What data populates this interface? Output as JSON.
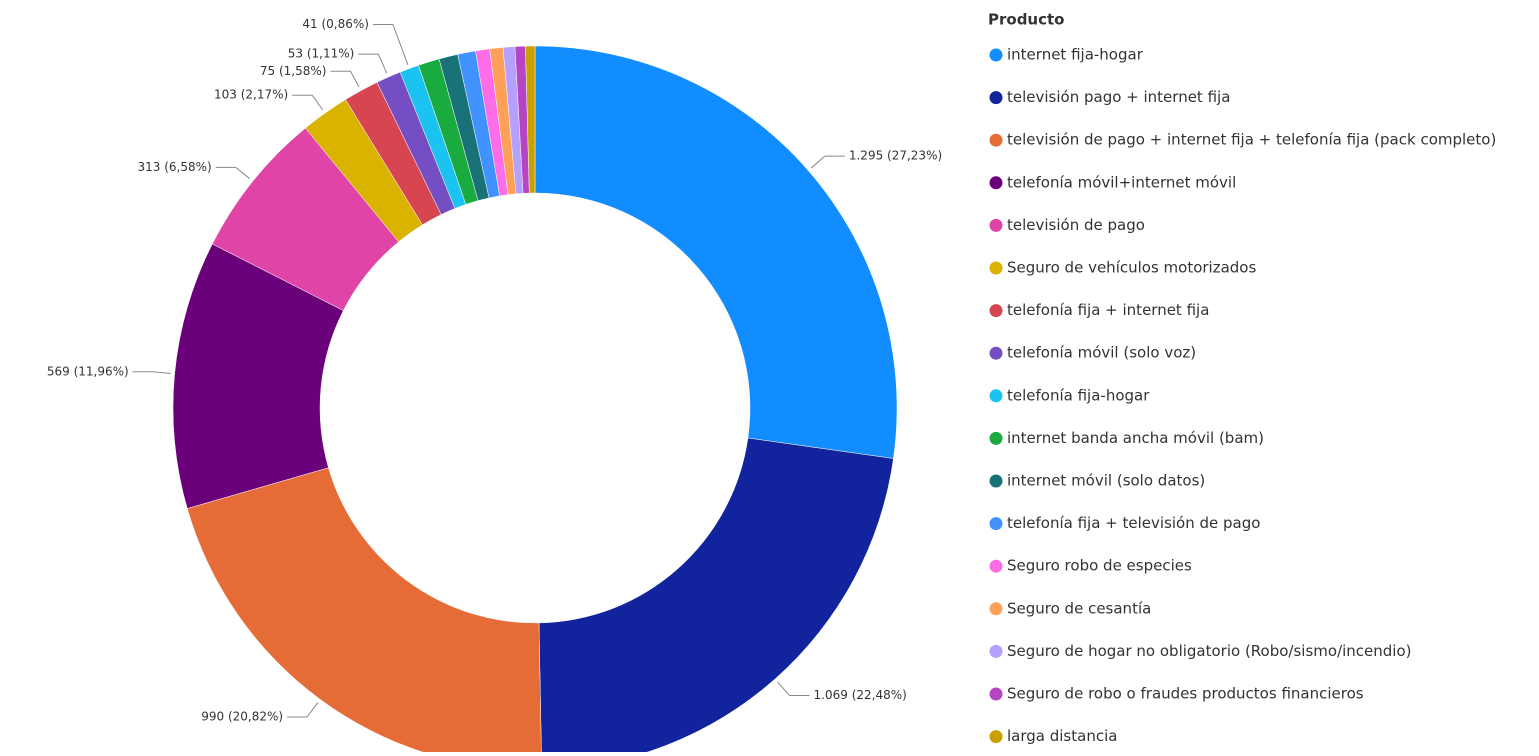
{
  "chart_data": {
    "type": "donut",
    "legend_title": "Producto",
    "legend": "right",
    "categories": [
      "internet fija-hogar",
      "televisión pago + internet fija",
      "televisión de pago + internet fija + telefonía fija (pack completo)",
      "telefonía móvil+internet móvil",
      "televisión de pago",
      "Seguro de vehículos motorizados",
      "telefonía fija + internet fija",
      "telefonía móvil (solo voz)",
      "telefonía fija-hogar",
      "internet banda ancha móvil (bam)",
      "internet móvil (solo datos)",
      "telefonía fija + televisión de pago",
      "Seguro robo de especies",
      "Seguro de cesantía",
      "Seguro de hogar no obligatorio (Robo/sismo/incendio)",
      "Seguro de robo o fraudes productos financieros",
      "larga distancia"
    ],
    "values": [
      1295,
      1069,
      990,
      569,
      313,
      103,
      75,
      53,
      41,
      45,
      40,
      38,
      30,
      28,
      25,
      22,
      20
    ],
    "value_labels": [
      "1.295 (27,23%)",
      "1.069 (22,48%)",
      "990 (20,82%)",
      "569 (11,96%)",
      "313 (6,58%)",
      "103 (2,17%)",
      "75 (1,58%)",
      "53 (1,11%)",
      "41 (0,86%)",
      null,
      null,
      null,
      null,
      null,
      null,
      null,
      null
    ],
    "colors": [
      "#118dff",
      "#12239e",
      "#e66c37",
      "#6b007b",
      "#e044a7",
      "#d9b300",
      "#d64550",
      "#744ec2",
      "#1ac3f0",
      "#1aab40",
      "#197278",
      "#4092ff",
      "#ff6ce8",
      "#ffa058",
      "#b6a0ff",
      "#b645c4",
      "#c8a000"
    ]
  }
}
